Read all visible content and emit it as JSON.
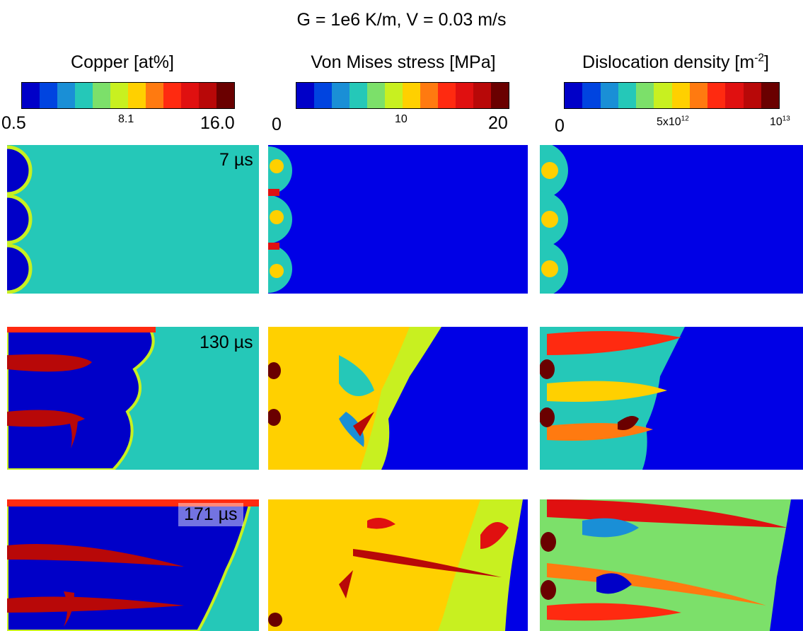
{
  "title": "G = 1e6 K/m, V = 0.03 m/s",
  "colormap": [
    "#0000c8",
    "#0044e0",
    "#1a8fd6",
    "#25c8b8",
    "#7ce06a",
    "#c8f020",
    "#ffd000",
    "#ff7a10",
    "#ff2a10",
    "#e01010",
    "#b80808",
    "#6a0000"
  ],
  "columns": [
    {
      "title": "Copper [at%]",
      "tick_min": "0.5",
      "tick_mid": "8.1",
      "tick_max": "16.0"
    },
    {
      "title": "Von Mises stress [MPa]",
      "tick_min": "0",
      "tick_mid": "10",
      "tick_max": "20"
    },
    {
      "title_main": "Dislocation density [m",
      "title_sup": "-2",
      "title_end": "]",
      "tick_min": "0",
      "tick_mid_base": "5x10",
      "tick_mid_sup": "12",
      "tick_max_base": "10",
      "tick_max_sup": "13"
    }
  ],
  "rows": [
    {
      "time": "7 µs"
    },
    {
      "time": "130 µs"
    },
    {
      "time": "171 µs"
    }
  ]
}
